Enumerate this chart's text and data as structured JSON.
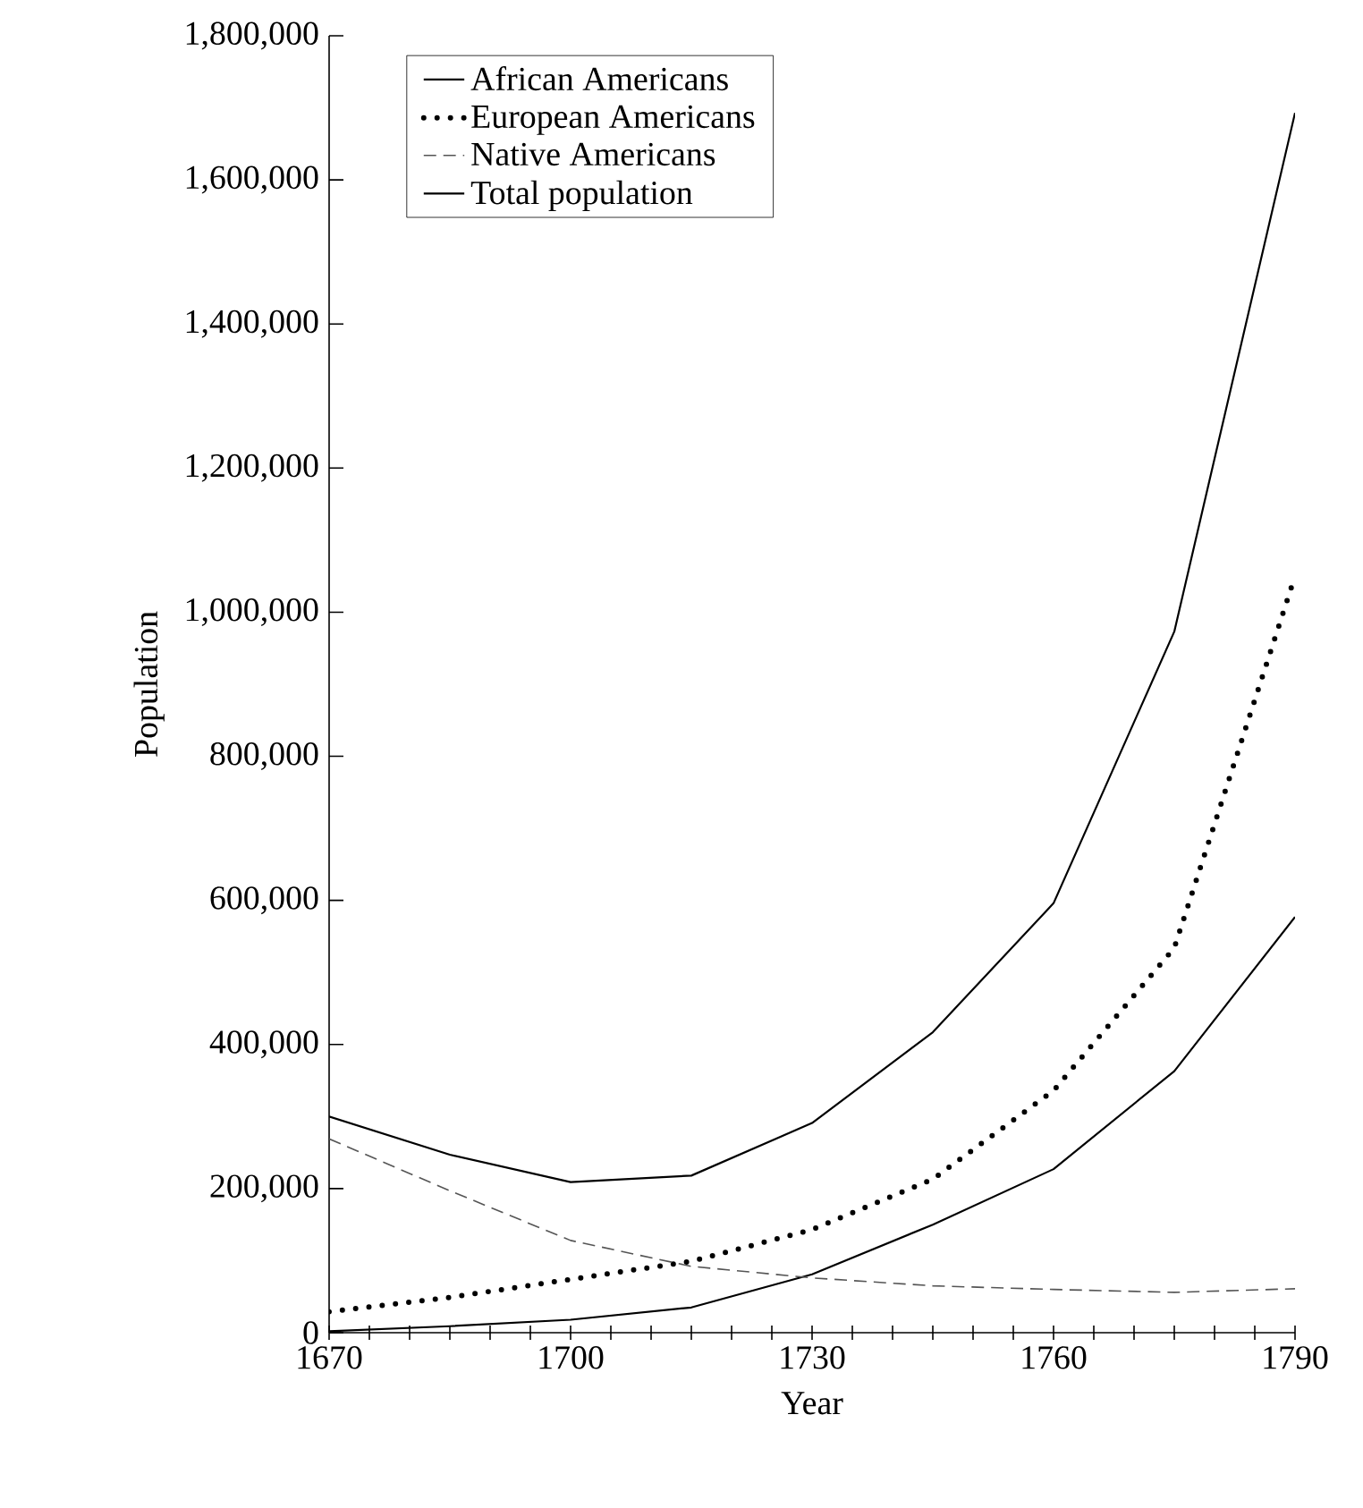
{
  "chart_data": {
    "type": "line",
    "xlabel": "Year",
    "ylabel": "Population",
    "x": [
      1670,
      1685,
      1700,
      1715,
      1730,
      1745,
      1760,
      1775,
      1790
    ],
    "series": [
      {
        "name": "African Americans",
        "color": "#000000",
        "line_style": "solid",
        "values": [
          2000,
          9000,
          18000,
          35000,
          81000,
          150000,
          227000,
          363000,
          577000
        ]
      },
      {
        "name": "European Americans",
        "color": "#000000",
        "line_style": "dotted",
        "values": [
          29000,
          49000,
          74000,
          99000,
          143000,
          213000,
          336000,
          534000,
          1050000
        ]
      },
      {
        "name": "Native Americans",
        "color": "#555555",
        "line_style": "dashed",
        "values": [
          269000,
          197000,
          128000,
          92000,
          76000,
          65000,
          60000,
          56000,
          61000
        ]
      },
      {
        "name": "Total population",
        "color": "#000000",
        "line_style": "solid",
        "values": [
          300000,
          247000,
          209000,
          218000,
          291000,
          417000,
          596000,
          973000,
          1693000
        ]
      }
    ],
    "xlim": [
      1670,
      1790
    ],
    "xticks": [
      1670,
      {
        "value": 1675,
        "label": null
      },
      {
        "value": 1680,
        "label": null
      },
      {
        "value": 1685,
        "label": null
      },
      {
        "value": 1690,
        "label": null
      },
      {
        "value": 1695,
        "label": null
      },
      1700,
      {
        "value": 1705,
        "label": null
      },
      {
        "value": 1710,
        "label": null
      },
      {
        "value": 1715,
        "label": null
      },
      {
        "value": 1720,
        "label": null
      },
      {
        "value": 1725,
        "label": null
      },
      1730,
      {
        "value": 1735,
        "label": null
      },
      {
        "value": 1740,
        "label": null
      },
      {
        "value": 1745,
        "label": null
      },
      {
        "value": 1750,
        "label": null
      },
      {
        "value": 1755,
        "label": null
      },
      1760,
      {
        "value": 1765,
        "label": null
      },
      {
        "value": 1770,
        "label": null
      },
      {
        "value": 1775,
        "label": null
      },
      {
        "value": 1780,
        "label": null
      },
      {
        "value": 1785,
        "label": null
      },
      1790
    ],
    "ylim": [
      0,
      1800000
    ],
    "yticks": [
      0,
      {
        "value": 200000,
        "label": "200,000"
      },
      {
        "value": 400000,
        "label": "400,000"
      },
      {
        "value": 600000,
        "label": "600,000"
      },
      {
        "value": 800000,
        "label": "800,000"
      },
      {
        "value": 1000000,
        "label": "1,000,000"
      },
      {
        "value": 1200000,
        "label": "1,200,000"
      },
      {
        "value": 1400000,
        "label": "1,400,000"
      },
      {
        "value": 1600000,
        "label": "1,600,000"
      },
      {
        "value": 1800000,
        "label": "1,800,000"
      }
    ],
    "grid": false,
    "legend": "top left"
  }
}
